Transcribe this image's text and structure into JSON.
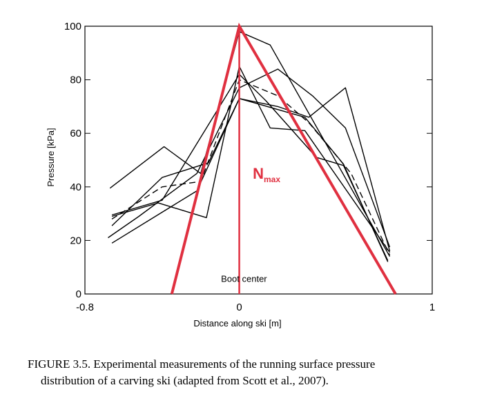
{
  "chart_data": {
    "type": "line",
    "xlabel": "Distance along ski [m]",
    "ylabel": "Pressure [kPa]",
    "xlim": [
      -0.8,
      1
    ],
    "ylim": [
      0,
      100
    ],
    "x_ticks": [
      -0.8,
      0,
      1
    ],
    "x_tick_labels": [
      "-0.8",
      "0",
      "1"
    ],
    "y_ticks": [
      0,
      20,
      40,
      60,
      80,
      100
    ],
    "y_tick_labels": [
      "0",
      "20",
      "40",
      "60",
      "80",
      "100"
    ],
    "grid": false,
    "series": [
      {
        "style": "solid",
        "points": [
          [
            -0.67,
            39.5
          ],
          [
            -0.39,
            55
          ],
          [
            -0.2,
            45
          ],
          [
            0,
            98
          ],
          [
            0.16,
            93
          ],
          [
            0.78,
            14
          ]
        ]
      },
      {
        "style": "solid",
        "points": [
          [
            -0.66,
            29
          ],
          [
            -0.42,
            34
          ],
          [
            -0.17,
            28.5
          ],
          [
            0,
            85
          ],
          [
            0.16,
            62
          ],
          [
            0.34,
            61
          ],
          [
            0.78,
            15.5
          ]
        ]
      },
      {
        "style": "solid",
        "points": [
          [
            -0.66,
            25.5
          ],
          [
            -0.4,
            43.5
          ],
          [
            -0.16,
            49
          ],
          [
            0,
            73
          ],
          [
            0.2,
            70
          ],
          [
            0.36,
            66
          ],
          [
            0.55,
            77
          ],
          [
            0.78,
            16
          ]
        ]
      },
      {
        "style": "solid",
        "points": [
          [
            -0.68,
            21
          ],
          [
            -0.52,
            29
          ],
          [
            -0.22,
            45
          ],
          [
            0,
            77
          ],
          [
            0.2,
            84
          ],
          [
            0.38,
            74
          ],
          [
            0.55,
            62
          ],
          [
            0.78,
            17.5
          ]
        ]
      },
      {
        "style": "solid",
        "points": [
          [
            -0.66,
            19
          ],
          [
            -0.22,
            38.5
          ],
          [
            0,
            73
          ],
          [
            0.34,
            66
          ],
          [
            0.54,
            48.5
          ],
          [
            0.77,
            12
          ]
        ]
      },
      {
        "style": "solid",
        "points": [
          [
            -0.66,
            29.5
          ],
          [
            -0.4,
            35
          ],
          [
            0,
            82
          ],
          [
            0.14,
            72
          ],
          [
            0.4,
            51
          ],
          [
            0.54,
            48
          ],
          [
            0.77,
            12.5
          ]
        ]
      },
      {
        "style": "dashed",
        "points": [
          [
            -0.66,
            28
          ],
          [
            -0.4,
            40
          ],
          [
            -0.2,
            42
          ],
          [
            0,
            80
          ],
          [
            0.2,
            74
          ],
          [
            0.36,
            64
          ],
          [
            0.58,
            45
          ],
          [
            0.78,
            14.5
          ]
        ]
      }
    ],
    "overlay": {
      "color": "#e03040",
      "triangle": [
        [
          -0.35,
          0
        ],
        [
          0,
          100
        ],
        [
          0.81,
          0
        ]
      ],
      "vertical": [
        [
          0,
          0
        ],
        [
          0,
          100
        ]
      ],
      "label": "N",
      "label_subscript": "max",
      "label_at": [
        0.07,
        43
      ]
    },
    "annotation": {
      "text": "Boot center",
      "at": [
        0.02,
        4.5
      ]
    }
  },
  "caption": {
    "line1": "FIGURE 3.5.  Experimental measurements of the running surface pressure",
    "line2": "distribution of a carving ski (adapted from Scott et al., 2007)."
  }
}
